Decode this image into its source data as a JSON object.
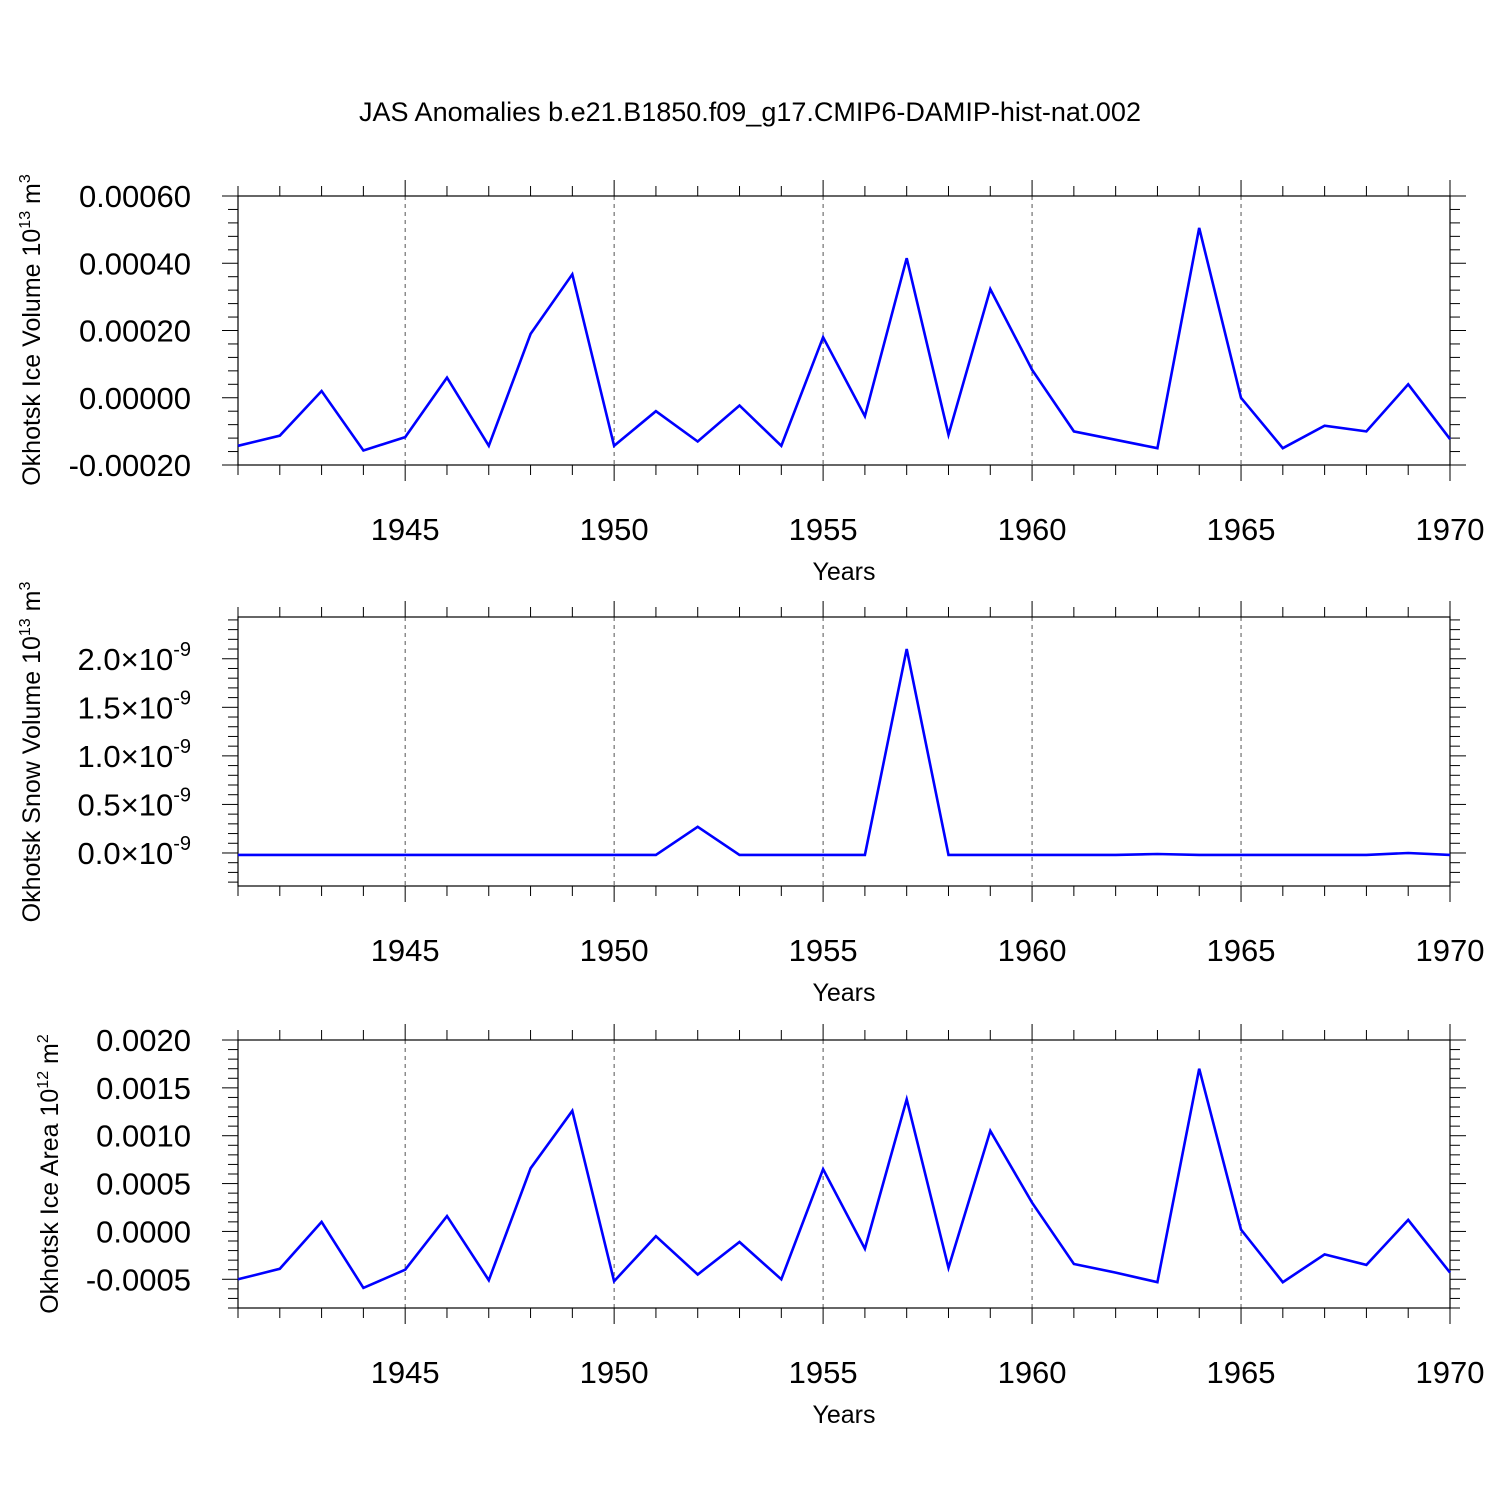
{
  "figure": {
    "title": "JAS Anomalies b.e21.B1850.f09_g17.CMIP6-DAMIP-hist-nat.002"
  },
  "chart_data": [
    {
      "type": "line",
      "ylabel": "Okhotsk Ice Volume 10",
      "ylabel_exp": "13",
      "ylabel_unit": " m",
      "ylabel_unit_exp": "3",
      "xlabel": "Years",
      "xlim": [
        1941,
        1970
      ],
      "ylim": [
        -0.0002,
        0.0006
      ],
      "x_ticks": [
        1945,
        1950,
        1955,
        1960,
        1965,
        1970
      ],
      "x_tick_labels": [
        "1945",
        "1950",
        "1955",
        "1960",
        "1965",
        "1970"
      ],
      "y_ticks": [
        -0.0002,
        0.0,
        0.0002,
        0.0004,
        0.0006
      ],
      "y_tick_labels": [
        "-0.00020",
        "0.00000",
        "0.00020",
        "0.00040",
        "0.00060"
      ],
      "grid": "vertical dashed at major x ticks",
      "color": "#0000ff",
      "x": [
        1941,
        1942,
        1943,
        1944,
        1945,
        1946,
        1947,
        1948,
        1949,
        1950,
        1951,
        1952,
        1953,
        1954,
        1955,
        1956,
        1957,
        1958,
        1959,
        1960,
        1961,
        1962,
        1963,
        1964,
        1965,
        1966,
        1967,
        1968,
        1969,
        1970
      ],
      "values": [
        -0.000143,
        -0.000113,
        2e-05,
        -0.000157,
        -0.000117,
        6e-05,
        -0.000143,
        0.00019,
        0.000367,
        -0.000143,
        -4e-05,
        -0.00013,
        -2.3e-05,
        -0.000143,
        0.00018,
        -5.5e-05,
        0.000415,
        -0.00011,
        0.000323,
        8.3e-05,
        -0.0001,
        -0.000125,
        -0.00015,
        0.000505,
        0.0,
        -0.00015,
        -8.3e-05,
        -0.0001,
        4e-05,
        -0.000123
      ]
    },
    {
      "type": "line",
      "ylabel": "Okhotsk Snow Volume 10",
      "ylabel_exp": "13",
      "ylabel_unit": " m",
      "ylabel_unit_exp": "3",
      "xlabel": "Years",
      "xlim": [
        1941,
        1970
      ],
      "ylim": [
        -3.4e-10,
        2.43e-09
      ],
      "x_ticks": [
        1945,
        1950,
        1955,
        1960,
        1965,
        1970
      ],
      "x_tick_labels": [
        "1945",
        "1950",
        "1955",
        "1960",
        "1965",
        "1970"
      ],
      "y_ticks": [
        0.0,
        5e-10,
        1e-09,
        1.5e-09,
        2e-09
      ],
      "y_tick_mantissa": [
        "0.0",
        "0.5",
        "1.0",
        "1.5",
        "2.0"
      ],
      "y_tick_times": "×",
      "y_tick_base": "10",
      "y_tick_exp": "-9",
      "grid": "vertical dashed at major x ticks",
      "color": "#0000ff",
      "x": [
        1941,
        1942,
        1943,
        1944,
        1945,
        1946,
        1947,
        1948,
        1949,
        1950,
        1951,
        1952,
        1953,
        1954,
        1955,
        1956,
        1957,
        1958,
        1959,
        1960,
        1961,
        1962,
        1963,
        1964,
        1965,
        1966,
        1967,
        1968,
        1969,
        1970
      ],
      "values": [
        -2e-11,
        -2e-11,
        -2e-11,
        -2e-11,
        -2e-11,
        -2e-11,
        -2e-11,
        -2e-11,
        -2e-11,
        -2e-11,
        -2e-11,
        2.7e-10,
        -2e-11,
        -2e-11,
        -2e-11,
        -2e-11,
        2.1e-09,
        -2e-11,
        -2e-11,
        -2e-11,
        -2e-11,
        -2e-11,
        -1e-11,
        -2e-11,
        -2e-11,
        -2e-11,
        -2e-11,
        -2e-11,
        0.0,
        -2e-11
      ]
    },
    {
      "type": "line",
      "ylabel": "Okhotsk Ice Area 10",
      "ylabel_exp": "12",
      "ylabel_unit": " m",
      "ylabel_unit_exp": "2",
      "xlabel": "Years",
      "xlim": [
        1941,
        1970
      ],
      "ylim": [
        -0.0008,
        0.002
      ],
      "x_ticks": [
        1945,
        1950,
        1955,
        1960,
        1965,
        1970
      ],
      "x_tick_labels": [
        "1945",
        "1950",
        "1955",
        "1960",
        "1965",
        "1970"
      ],
      "y_ticks": [
        -0.0005,
        0.0,
        0.0005,
        0.001,
        0.0015,
        0.002
      ],
      "y_tick_labels": [
        "-0.0005",
        "0.0000",
        "0.0005",
        "0.0010",
        "0.0015",
        "0.0020"
      ],
      "grid": "vertical dashed at major x ticks",
      "color": "#0000ff",
      "x": [
        1941,
        1942,
        1943,
        1944,
        1945,
        1946,
        1947,
        1948,
        1949,
        1950,
        1951,
        1952,
        1953,
        1954,
        1955,
        1956,
        1957,
        1958,
        1959,
        1960,
        1961,
        1962,
        1963,
        1964,
        1965,
        1966,
        1967,
        1968,
        1969,
        1970
      ],
      "values": [
        -0.0005,
        -0.00039,
        0.0001,
        -0.00059,
        -0.0004,
        0.00016,
        -0.00051,
        0.00066,
        0.00126,
        -0.00052,
        -5e-05,
        -0.00045,
        -0.00011,
        -0.0005,
        0.00065,
        -0.00018,
        0.00138,
        -0.00038,
        0.00105,
        0.0003,
        -0.00034,
        -0.00043,
        -0.00053,
        0.0017,
        2e-05,
        -0.00053,
        -0.00024,
        -0.00035,
        0.00012,
        -0.00043
      ]
    }
  ]
}
